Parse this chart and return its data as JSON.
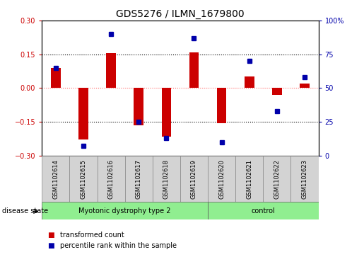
{
  "title": "GDS5276 / ILMN_1679800",
  "samples": [
    "GSM1102614",
    "GSM1102615",
    "GSM1102616",
    "GSM1102617",
    "GSM1102618",
    "GSM1102619",
    "GSM1102620",
    "GSM1102621",
    "GSM1102622",
    "GSM1102623"
  ],
  "transformed_count": [
    0.09,
    -0.23,
    0.155,
    -0.165,
    -0.215,
    0.16,
    -0.155,
    0.05,
    -0.03,
    0.02
  ],
  "percentile_rank": [
    65,
    7,
    90,
    25,
    13,
    87,
    10,
    70,
    33,
    58
  ],
  "group1_label": "Myotonic dystrophy type 2",
  "group1_samples": 6,
  "group2_label": "control",
  "group2_samples": 4,
  "group_color": "#90EE90",
  "ylim_left": [
    -0.3,
    0.3
  ],
  "ylim_right": [
    0,
    100
  ],
  "yticks_left": [
    -0.3,
    -0.15,
    0,
    0.15,
    0.3
  ],
  "yticks_right": [
    0,
    25,
    50,
    75,
    100
  ],
  "bar_color": "#CC0000",
  "dot_color": "#0000AA",
  "background_color": "#ffffff",
  "zero_line_color": "#FF6666",
  "hline_color": "#000000",
  "sample_box_color": "#d3d3d3",
  "label_disease_state": "disease state",
  "legend_items": [
    {
      "label": "transformed count",
      "color": "#CC0000"
    },
    {
      "label": "percentile rank within the sample",
      "color": "#0000AA"
    }
  ],
  "title_fontsize": 10,
  "axis_tick_fontsize": 7,
  "sample_label_fontsize": 6,
  "group_label_fontsize": 7,
  "legend_fontsize": 7,
  "disease_state_fontsize": 7,
  "bar_width": 0.35
}
